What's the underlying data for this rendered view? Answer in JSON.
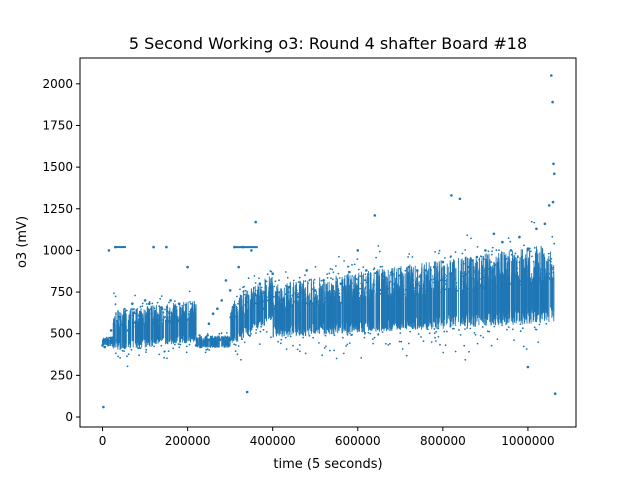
{
  "chart_data": {
    "type": "scatter",
    "title": "5 Second Working o3: Round 4 shafter Board #18",
    "xlabel": "time (5 seconds)",
    "ylabel": "o3 (mV)",
    "xlim": [
      -53000,
      1113000
    ],
    "ylim": [
      -60,
      2155
    ],
    "xticks": [
      0,
      200000,
      400000,
      600000,
      800000,
      1000000
    ],
    "xtick_labels": [
      "0",
      "200000",
      "400000",
      "600000",
      "800000",
      "1000000"
    ],
    "yticks": [
      0,
      250,
      500,
      750,
      1000,
      1250,
      1500,
      1750,
      2000
    ],
    "ytick_labels": [
      "0",
      "250",
      "500",
      "750",
      "1000",
      "1250",
      "1500",
      "1750",
      "2000"
    ],
    "grid": false,
    "color": "#1f77b4",
    "series": [
      {
        "x": [
          0,
          2000,
          5000,
          10000,
          15000,
          20000,
          25000,
          30000,
          35000,
          40000,
          50000,
          60000,
          70000,
          80000,
          90000,
          100000,
          110000,
          120000,
          130000,
          140000,
          150000,
          160000,
          170000,
          180000,
          190000,
          200000,
          210000,
          220000,
          230000,
          240000,
          250000,
          260000,
          270000,
          280000,
          290000,
          300000,
          310000,
          320000,
          330000,
          340000,
          350000,
          360000,
          370000,
          380000,
          390000,
          400000,
          420000,
          440000,
          460000,
          480000,
          500000,
          520000,
          540000,
          560000,
          580000,
          600000,
          620000,
          640000,
          660000,
          680000,
          700000,
          720000,
          740000,
          760000,
          780000,
          800000,
          820000,
          840000,
          860000,
          880000,
          900000,
          920000,
          940000,
          960000,
          980000,
          1000000,
          1020000,
          1040000,
          1050000,
          1055000,
          1058000,
          1060000,
          1062000,
          1064000,
          1000000,
          1059000
        ],
        "y": [
          430,
          60,
          420,
          440,
          1000,
          520,
          430,
          1020,
          460,
          600,
          470,
          520,
          680,
          560,
          620,
          700,
          680,
          1020,
          580,
          650,
          1020,
          700,
          660,
          680,
          580,
          900,
          650,
          430,
          420,
          440,
          560,
          620,
          650,
          700,
          820,
          760,
          1020,
          900,
          1020,
          150,
          1000,
          1170,
          800,
          650,
          700,
          860,
          700,
          780,
          720,
          880,
          760,
          820,
          760,
          800,
          870,
          1000,
          880,
          1210,
          800,
          870,
          850,
          900,
          880,
          880,
          900,
          930,
          1330,
          1310,
          900,
          960,
          1000,
          1100,
          1050,
          1000,
          1080,
          1010,
          1130,
          1160,
          1270,
          2050,
          1890,
          1520,
          1460,
          140,
          300,
          1290
        ]
      }
    ]
  }
}
